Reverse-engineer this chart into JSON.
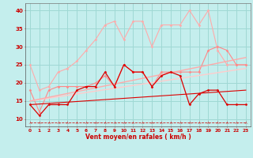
{
  "xlabel": "Vent moyen/en rafales ( km/h )",
  "xlim": [
    -0.5,
    23.5
  ],
  "ylim": [
    8,
    42
  ],
  "yticks": [
    10,
    15,
    20,
    25,
    30,
    35,
    40
  ],
  "xticks": [
    0,
    1,
    2,
    3,
    4,
    5,
    6,
    7,
    8,
    9,
    10,
    11,
    12,
    13,
    14,
    15,
    16,
    17,
    18,
    19,
    20,
    21,
    22,
    23
  ],
  "bg_color": "#c4eeed",
  "grid_color": "#9fd8d4",
  "series": [
    {
      "name": "light_pink_top",
      "color": "#ffaaaa",
      "lw": 0.8,
      "marker": "D",
      "ms": 1.5,
      "linestyle": "-",
      "data_x": [
        0,
        1,
        2,
        3,
        4,
        5,
        6,
        7,
        8,
        9,
        10,
        11,
        12,
        13,
        14,
        15,
        16,
        17,
        18,
        19,
        20,
        21,
        22,
        23
      ],
      "data_y": [
        25,
        18,
        19,
        23,
        24,
        26,
        29,
        32,
        36,
        37,
        32,
        37,
        37,
        30,
        36,
        36,
        36,
        40,
        36,
        40,
        29,
        25,
        25,
        25
      ]
    },
    {
      "name": "medium_pink",
      "color": "#ff8888",
      "lw": 0.8,
      "marker": "D",
      "ms": 1.5,
      "linestyle": "-",
      "data_x": [
        0,
        1,
        2,
        3,
        4,
        5,
        6,
        7,
        8,
        9,
        10,
        11,
        12,
        13,
        14,
        15,
        16,
        17,
        18,
        19,
        20,
        21,
        22,
        23
      ],
      "data_y": [
        18,
        12,
        18,
        19,
        19,
        19,
        19,
        20,
        22,
        19,
        25,
        23,
        23,
        19,
        23,
        23,
        23,
        23,
        23,
        29,
        30,
        29,
        25,
        25
      ]
    },
    {
      "name": "light_trend",
      "color": "#ffcccc",
      "lw": 1.0,
      "marker": null,
      "ms": 0,
      "linestyle": "-",
      "data_x": [
        0,
        23
      ],
      "data_y": [
        15,
        24
      ]
    },
    {
      "name": "medium_trend",
      "color": "#ffaaaa",
      "lw": 1.0,
      "marker": null,
      "ms": 0,
      "linestyle": "-",
      "data_x": [
        0,
        23
      ],
      "data_y": [
        15,
        27
      ]
    },
    {
      "name": "dark_red_line",
      "color": "#dd0000",
      "lw": 0.9,
      "marker": "D",
      "ms": 1.5,
      "linestyle": "-",
      "data_x": [
        0,
        1,
        2,
        3,
        4,
        5,
        6,
        7,
        8,
        9,
        10,
        11,
        12,
        13,
        14,
        15,
        16,
        17,
        18,
        19,
        20,
        21,
        22,
        23
      ],
      "data_y": [
        14,
        11,
        14,
        14,
        14,
        18,
        19,
        19,
        23,
        19,
        25,
        23,
        23,
        19,
        22,
        23,
        22,
        14,
        17,
        18,
        18,
        14,
        14,
        14
      ]
    },
    {
      "name": "dark_trend",
      "color": "#dd0000",
      "lw": 0.8,
      "marker": null,
      "ms": 0,
      "linestyle": "-",
      "data_x": [
        0,
        23
      ],
      "data_y": [
        14,
        18
      ]
    },
    {
      "name": "bottom_dashed",
      "color": "#cc2222",
      "lw": 0.6,
      "marker": "2",
      "ms": 3,
      "linestyle": "--",
      "data_x": [
        0,
        1,
        2,
        3,
        4,
        5,
        6,
        7,
        8,
        9,
        10,
        11,
        12,
        13,
        14,
        15,
        16,
        17,
        18,
        19,
        20,
        21,
        22,
        23
      ],
      "data_y": [
        9,
        9,
        9,
        9,
        9,
        9,
        9,
        9,
        9,
        9,
        9,
        9,
        9,
        9,
        9,
        9,
        9,
        9,
        9,
        9,
        9,
        9,
        9,
        9
      ]
    }
  ]
}
